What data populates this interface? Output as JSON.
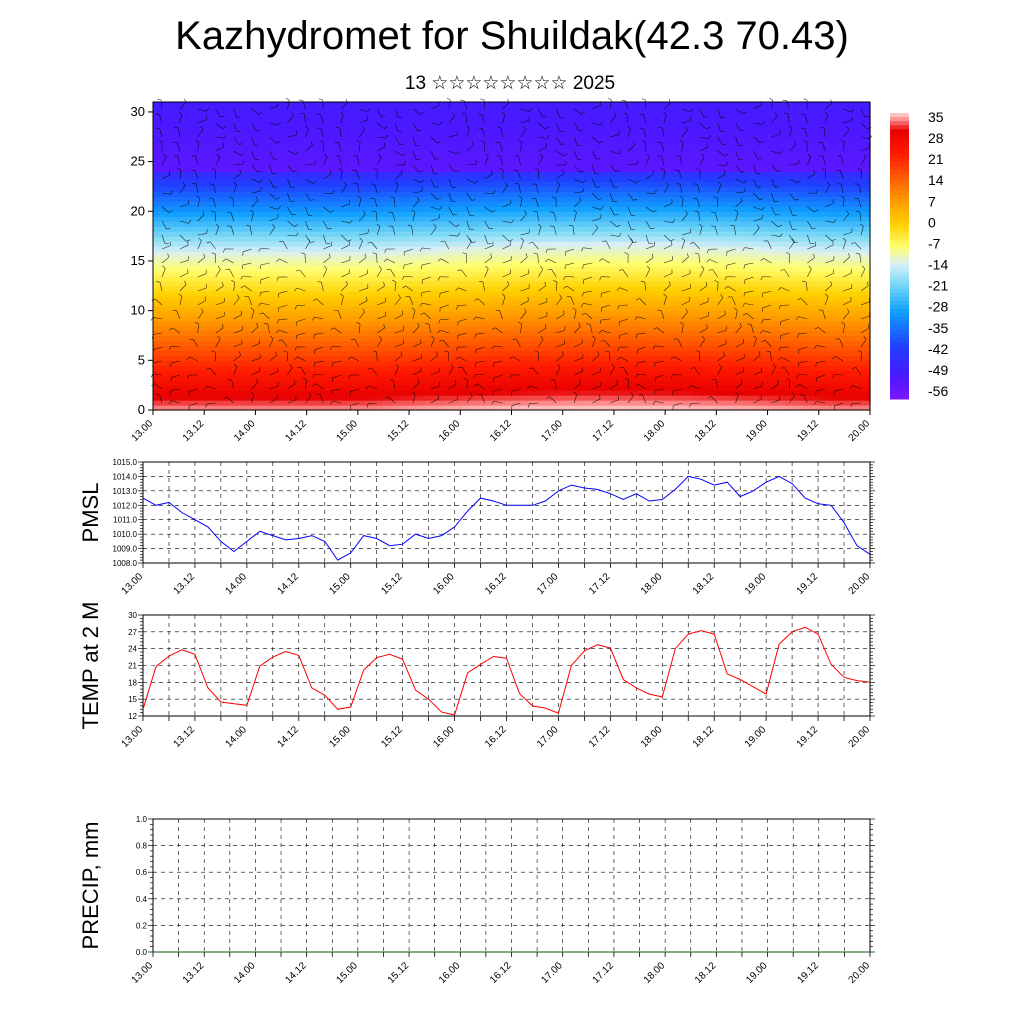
{
  "header": {
    "title": "Kazhydromet for Shuildak(42.3 70.43)",
    "subtitle": "13 ☆☆☆☆☆☆☆☆ 2025"
  },
  "colors": {
    "pmsl_line": "#0000ff",
    "temp_line": "#ff0000",
    "precip_line": "#006400",
    "grid": "#000000",
    "colormap": [
      "#7b16ff",
      "#4a18ff",
      "#2040ff",
      "#10a0ff",
      "#80dcf6",
      "#d8eef8",
      "#ffff70",
      "#ffd000",
      "#ff9a00",
      "#ff5a00",
      "#ff1a00",
      "#e80000",
      "#ff9a9a",
      "#ffd8d8"
    ]
  },
  "chart_data": [
    {
      "type": "heatmap",
      "id": "cross-section",
      "ylim": [
        0,
        31
      ],
      "yticks": [
        0,
        5,
        10,
        15,
        20,
        25,
        30
      ],
      "x_tick_labels": [
        "13.00",
        "13.12",
        "14.00",
        "14.12",
        "15.00",
        "15.12",
        "16.00",
        "16.12",
        "17.00",
        "17.12",
        "18.00",
        "18.12",
        "19.00",
        "19.12",
        "20.00"
      ],
      "colorbar_labels": [
        "35",
        "28",
        "21",
        "14",
        "7",
        "0",
        "-7",
        "-14",
        "-21",
        "-28",
        "-35",
        "-42",
        "-49",
        "-56"
      ],
      "overlay": "wind barbs",
      "temperature_range": [
        -60,
        38
      ]
    },
    {
      "type": "line",
      "id": "pmsl",
      "ylabel": "PMSL",
      "ylim": [
        1008.0,
        1015.0
      ],
      "yticks": [
        "1008.0",
        "1009.0",
        "1010.0",
        "1011.0",
        "1012.0",
        "1013.0",
        "1014.0",
        "1015.0"
      ],
      "x_tick_labels": [
        "13.00",
        "13.12",
        "14.00",
        "14.12",
        "15.00",
        "15.12",
        "16.00",
        "16.12",
        "17.00",
        "17.12",
        "18.00",
        "18.12",
        "19.00",
        "19.12",
        "20.00"
      ],
      "x_hours": [
        0,
        3,
        6,
        9,
        12,
        15,
        18,
        21,
        24,
        27,
        30,
        33,
        36,
        39,
        42,
        45,
        48,
        51,
        54,
        57,
        60,
        63,
        66,
        69,
        72,
        75,
        78,
        81,
        84,
        87,
        90,
        93,
        96,
        99,
        102,
        105,
        108,
        111,
        114,
        117,
        120,
        123,
        126,
        129,
        132,
        135,
        138,
        141,
        144,
        147,
        150,
        153,
        156,
        159,
        162,
        165,
        168
      ],
      "series": [
        {
          "values": [
            1012.5,
            1012.0,
            1012.2,
            1011.5,
            1011.0,
            1010.5,
            1009.5,
            1008.8,
            1009.5,
            1010.2,
            1009.9,
            1009.6,
            1009.7,
            1009.9,
            1009.5,
            1008.2,
            1008.7,
            1009.9,
            1009.7,
            1009.2,
            1009.3,
            1010.0,
            1009.7,
            1009.9,
            1010.5,
            1011.6,
            1012.5,
            1012.3,
            1012.0,
            1012.0,
            1012.0,
            1012.3,
            1013.0,
            1013.4,
            1013.2,
            1013.1,
            1012.8,
            1012.4,
            1012.8,
            1012.3,
            1012.4,
            1013.1,
            1014.0,
            1013.8,
            1013.4,
            1013.6,
            1012.6,
            1013.0,
            1013.6,
            1014.0,
            1013.5,
            1012.5,
            1012.1,
            1012.0,
            1010.8,
            1009.2,
            1008.6
          ]
        }
      ]
    },
    {
      "type": "line",
      "id": "temp2m",
      "ylabel": "TEMP at 2 M",
      "ylim": [
        12,
        30
      ],
      "yticks": [
        "12",
        "15",
        "18",
        "21",
        "24",
        "27",
        "30"
      ],
      "x_tick_labels": [
        "13.00",
        "13.12",
        "14.00",
        "14.12",
        "15.00",
        "15.12",
        "16.00",
        "16.12",
        "17.00",
        "17.12",
        "18.00",
        "18.12",
        "19.00",
        "19.12",
        "20.00"
      ],
      "x_hours": [
        0,
        3,
        6,
        9,
        12,
        15,
        18,
        21,
        24,
        27,
        30,
        33,
        36,
        39,
        42,
        45,
        48,
        51,
        54,
        57,
        60,
        63,
        66,
        69,
        72,
        75,
        78,
        81,
        84,
        87,
        90,
        93,
        96,
        99,
        102,
        105,
        108,
        111,
        114,
        117,
        120,
        123,
        126,
        129,
        132,
        135,
        138,
        141,
        144,
        147,
        150,
        153,
        156,
        159,
        162,
        165,
        168
      ],
      "series": [
        {
          "values": [
            13.2,
            20.8,
            22.7,
            23.8,
            23.0,
            17.0,
            14.5,
            14.2,
            13.9,
            20.9,
            22.5,
            23.5,
            22.8,
            17.0,
            15.7,
            13.2,
            13.6,
            20.2,
            22.4,
            23.0,
            22.1,
            16.6,
            15.0,
            12.7,
            12.2,
            19.7,
            21.2,
            22.6,
            22.3,
            16.0,
            13.8,
            13.4,
            12.5,
            21.0,
            23.6,
            24.7,
            24.1,
            18.5,
            17.0,
            15.9,
            15.4,
            24.0,
            26.6,
            27.2,
            26.6,
            19.5,
            18.5,
            17.2,
            15.9,
            24.8,
            27.0,
            27.8,
            26.6,
            21.2,
            18.9,
            18.3,
            18.0
          ]
        }
      ]
    },
    {
      "type": "line",
      "id": "precip",
      "ylabel": "PRECIP, mm",
      "ylim": [
        0.0,
        1.0
      ],
      "yticks": [
        "0.0",
        "0.2",
        "0.4",
        "0.6",
        "0.8",
        "1.0"
      ],
      "x_tick_labels": [
        "13.00",
        "13.12",
        "14.00",
        "14.12",
        "15.00",
        "15.12",
        "16.00",
        "16.12",
        "17.00",
        "17.12",
        "18.00",
        "18.12",
        "19.00",
        "19.12",
        "20.00"
      ],
      "series": [
        {
          "values": [
            0.0,
            0.0
          ]
        }
      ]
    }
  ]
}
